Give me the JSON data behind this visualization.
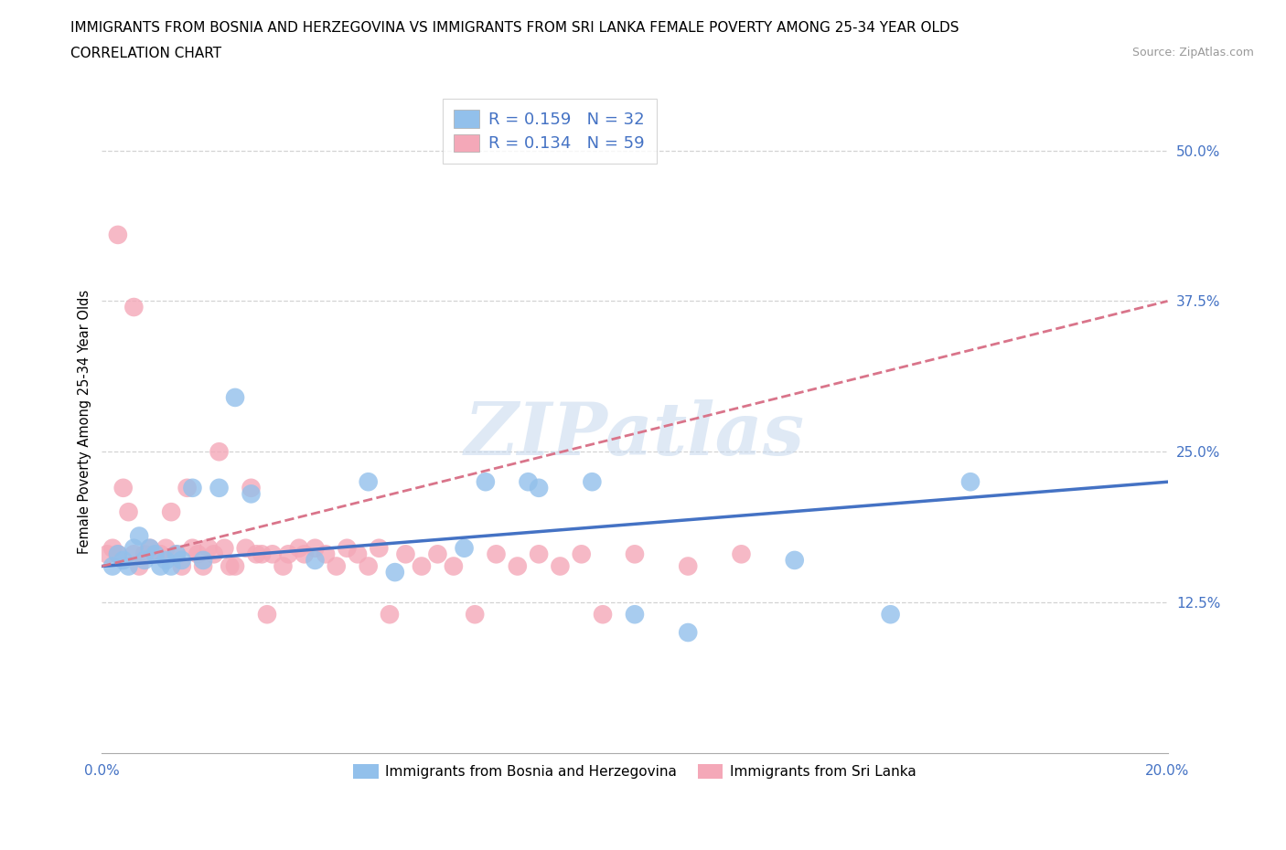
{
  "title_line1": "IMMIGRANTS FROM BOSNIA AND HERZEGOVINA VS IMMIGRANTS FROM SRI LANKA FEMALE POVERTY AMONG 25-34 YEAR OLDS",
  "title_line2": "CORRELATION CHART",
  "source_text": "Source: ZipAtlas.com",
  "ylabel": "Female Poverty Among 25-34 Year Olds",
  "xlim": [
    0.0,
    0.2
  ],
  "ylim": [
    0.0,
    0.55
  ],
  "xticks": [
    0.0,
    0.05,
    0.1,
    0.15,
    0.2
  ],
  "xtick_labels": [
    "0.0%",
    "",
    "",
    "",
    "20.0%"
  ],
  "ytick_positions": [
    0.125,
    0.25,
    0.375,
    0.5
  ],
  "ytick_labels": [
    "12.5%",
    "25.0%",
    "37.5%",
    "50.0%"
  ],
  "watermark_text": "ZIPatlas",
  "legend_bosnia_label": "Immigrants from Bosnia and Herzegovina",
  "legend_srilanka_label": "Immigrants from Sri Lanka",
  "bosnia_R": "0.159",
  "bosnia_N": "32",
  "srilanka_R": "0.134",
  "srilanka_N": "59",
  "bosnia_color": "#92c0eb",
  "srilanka_color": "#f4a8b8",
  "bosnia_line_color": "#4472c4",
  "srilanka_line_color": "#d9748a",
  "bosnia_scatter_x": [
    0.002,
    0.003,
    0.004,
    0.005,
    0.006,
    0.007,
    0.008,
    0.009,
    0.01,
    0.011,
    0.012,
    0.013,
    0.014,
    0.015,
    0.017,
    0.019,
    0.022,
    0.025,
    0.028,
    0.04,
    0.05,
    0.055,
    0.068,
    0.072,
    0.08,
    0.082,
    0.092,
    0.1,
    0.11,
    0.13,
    0.148,
    0.163
  ],
  "bosnia_scatter_y": [
    0.155,
    0.165,
    0.16,
    0.155,
    0.17,
    0.18,
    0.16,
    0.17,
    0.165,
    0.155,
    0.16,
    0.155,
    0.165,
    0.16,
    0.22,
    0.16,
    0.22,
    0.295,
    0.215,
    0.16,
    0.225,
    0.15,
    0.17,
    0.225,
    0.225,
    0.22,
    0.225,
    0.115,
    0.1,
    0.16,
    0.115,
    0.225
  ],
  "srilanka_scatter_x": [
    0.001,
    0.002,
    0.003,
    0.003,
    0.004,
    0.005,
    0.006,
    0.006,
    0.007,
    0.008,
    0.009,
    0.01,
    0.011,
    0.012,
    0.013,
    0.014,
    0.015,
    0.016,
    0.017,
    0.018,
    0.019,
    0.02,
    0.021,
    0.022,
    0.023,
    0.024,
    0.025,
    0.027,
    0.028,
    0.029,
    0.03,
    0.031,
    0.032,
    0.034,
    0.035,
    0.037,
    0.038,
    0.04,
    0.042,
    0.044,
    0.046,
    0.048,
    0.05,
    0.052,
    0.054,
    0.057,
    0.06,
    0.063,
    0.066,
    0.07,
    0.074,
    0.078,
    0.082,
    0.086,
    0.09,
    0.094,
    0.1,
    0.11,
    0.12
  ],
  "srilanka_scatter_y": [
    0.165,
    0.17,
    0.43,
    0.165,
    0.22,
    0.2,
    0.37,
    0.165,
    0.155,
    0.165,
    0.17,
    0.165,
    0.165,
    0.17,
    0.2,
    0.165,
    0.155,
    0.22,
    0.17,
    0.165,
    0.155,
    0.17,
    0.165,
    0.25,
    0.17,
    0.155,
    0.155,
    0.17,
    0.22,
    0.165,
    0.165,
    0.115,
    0.165,
    0.155,
    0.165,
    0.17,
    0.165,
    0.17,
    0.165,
    0.155,
    0.17,
    0.165,
    0.155,
    0.17,
    0.115,
    0.165,
    0.155,
    0.165,
    0.155,
    0.115,
    0.165,
    0.155,
    0.165,
    0.155,
    0.165,
    0.115,
    0.165,
    0.155,
    0.165
  ],
  "background_color": "#ffffff",
  "grid_color": "#c8c8c8",
  "title_fontsize": 11,
  "axis_label_fontsize": 10.5,
  "tick_fontsize": 11,
  "r_n_fontsize": 13,
  "legend_fontsize": 11,
  "bosnia_line_x0": 0.0,
  "bosnia_line_y0": 0.155,
  "bosnia_line_x1": 0.2,
  "bosnia_line_y1": 0.225,
  "srilanka_line_x0": 0.0,
  "srilanka_line_y0": 0.155,
  "srilanka_line_x1": 0.2,
  "srilanka_line_y1": 0.375
}
